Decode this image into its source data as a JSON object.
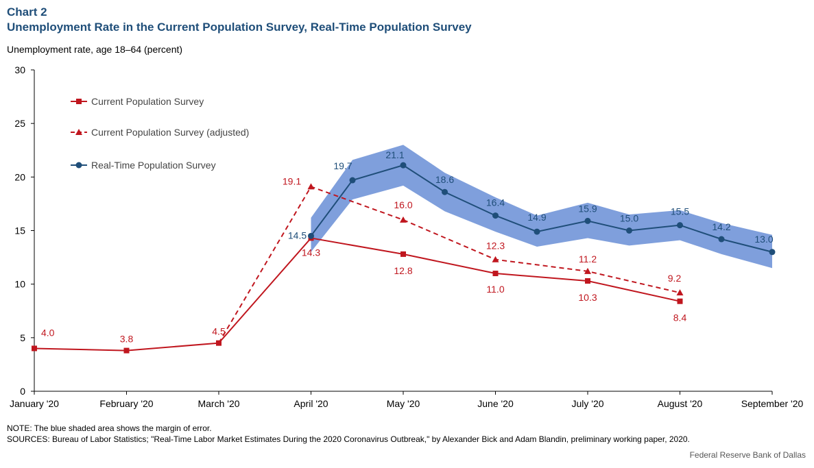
{
  "header": {
    "chart_number": "Chart 2",
    "title": "Unemployment Rate in the Current Population Survey, Real-Time Population Survey",
    "y_caption": "Unemployment rate, age 18–64 (percent)"
  },
  "footer": {
    "note": "NOTE: The blue shaded area shows the margin of error.",
    "sources": "SOURCES: Bureau of Labor Statistics; \"Real-Time Labor Market Estimates During the 2020 Coronavirus Outbreak,\" by Alexander Bick and Adam Blandin, preliminary working paper, 2020.",
    "credit": "Federal Reserve Bank of Dallas"
  },
  "colors": {
    "cps": "#c0161e",
    "rps": "#1f4e79",
    "band": "#7f9fdc",
    "axis": "#000000"
  },
  "chart_data": {
    "type": "line",
    "title": "Unemployment Rate in the Current Population Survey, Real-Time Population Survey",
    "ylabel": "Unemployment rate, age 18–64 (percent)",
    "ylim": [
      0,
      30
    ],
    "yticks": [
      0,
      5,
      10,
      15,
      20,
      25,
      30
    ],
    "x_ticks": [
      {
        "label": "January '20",
        "x": 0
      },
      {
        "label": "February '20",
        "x": 1
      },
      {
        "label": "March '20",
        "x": 2
      },
      {
        "label": "April '20",
        "x": 3
      },
      {
        "label": "May '20",
        "x": 4
      },
      {
        "label": "June '20",
        "x": 5
      },
      {
        "label": "July '20",
        "x": 6
      },
      {
        "label": "August '20",
        "x": 7
      },
      {
        "label": "September '20",
        "x": 8
      }
    ],
    "xlim": [
      0,
      8
    ],
    "grid": false,
    "legend_placement": "top-left",
    "series": [
      {
        "name": "Current Population Survey",
        "style": "solid",
        "marker": "square",
        "points": [
          {
            "x": 0,
            "y": 4.0,
            "label": "4.0"
          },
          {
            "x": 1,
            "y": 3.8,
            "label": "3.8"
          },
          {
            "x": 2,
            "y": 4.5,
            "label": "4.5"
          },
          {
            "x": 3,
            "y": 14.3,
            "label": "14.3"
          },
          {
            "x": 4,
            "y": 12.8,
            "label": "12.8"
          },
          {
            "x": 5,
            "y": 11.0,
            "label": "11.0"
          },
          {
            "x": 6,
            "y": 10.3,
            "label": "10.3"
          },
          {
            "x": 7,
            "y": 8.4,
            "label": "8.4"
          }
        ]
      },
      {
        "name": "Current Population Survey (adjusted)",
        "style": "dashed",
        "marker": "triangle",
        "points": [
          {
            "x": 2,
            "y": 4.5,
            "label": ""
          },
          {
            "x": 3,
            "y": 19.1,
            "label": "19.1"
          },
          {
            "x": 4,
            "y": 16.0,
            "label": "16.0"
          },
          {
            "x": 5,
            "y": 12.3,
            "label": "12.3"
          },
          {
            "x": 6,
            "y": 11.2,
            "label": "11.2"
          },
          {
            "x": 7,
            "y": 9.2,
            "label": "9.2"
          }
        ]
      },
      {
        "name": "Real-Time Population Survey",
        "style": "solid",
        "marker": "circle",
        "points": [
          {
            "x": 3.0,
            "y": 14.5,
            "label": "14.5"
          },
          {
            "x": 3.45,
            "y": 19.7,
            "label": "19.7"
          },
          {
            "x": 4.0,
            "y": 21.1,
            "label": "21.1"
          },
          {
            "x": 4.45,
            "y": 18.6,
            "label": "18.6"
          },
          {
            "x": 5.0,
            "y": 16.4,
            "label": "16.4"
          },
          {
            "x": 5.45,
            "y": 14.9,
            "label": "14.9"
          },
          {
            "x": 6.0,
            "y": 15.9,
            "label": "15.9"
          },
          {
            "x": 6.45,
            "y": 15.0,
            "label": "15.0"
          },
          {
            "x": 7.0,
            "y": 15.5,
            "label": "15.5"
          },
          {
            "x": 7.45,
            "y": 14.2,
            "label": "14.2"
          },
          {
            "x": 8.0,
            "y": 13.0,
            "label": "13.0"
          }
        ]
      }
    ],
    "margin_of_error_band": {
      "x": [
        3.0,
        3.45,
        4.0,
        4.45,
        5.0,
        5.45,
        6.0,
        6.45,
        7.0,
        7.45,
        8.0
      ],
      "upper": [
        16.2,
        21.6,
        23.0,
        20.4,
        18.1,
        16.4,
        17.6,
        16.5,
        16.9,
        15.7,
        14.6
      ],
      "lower": [
        13.0,
        17.9,
        19.2,
        16.8,
        14.9,
        13.5,
        14.3,
        13.6,
        14.1,
        12.8,
        11.5
      ]
    }
  }
}
